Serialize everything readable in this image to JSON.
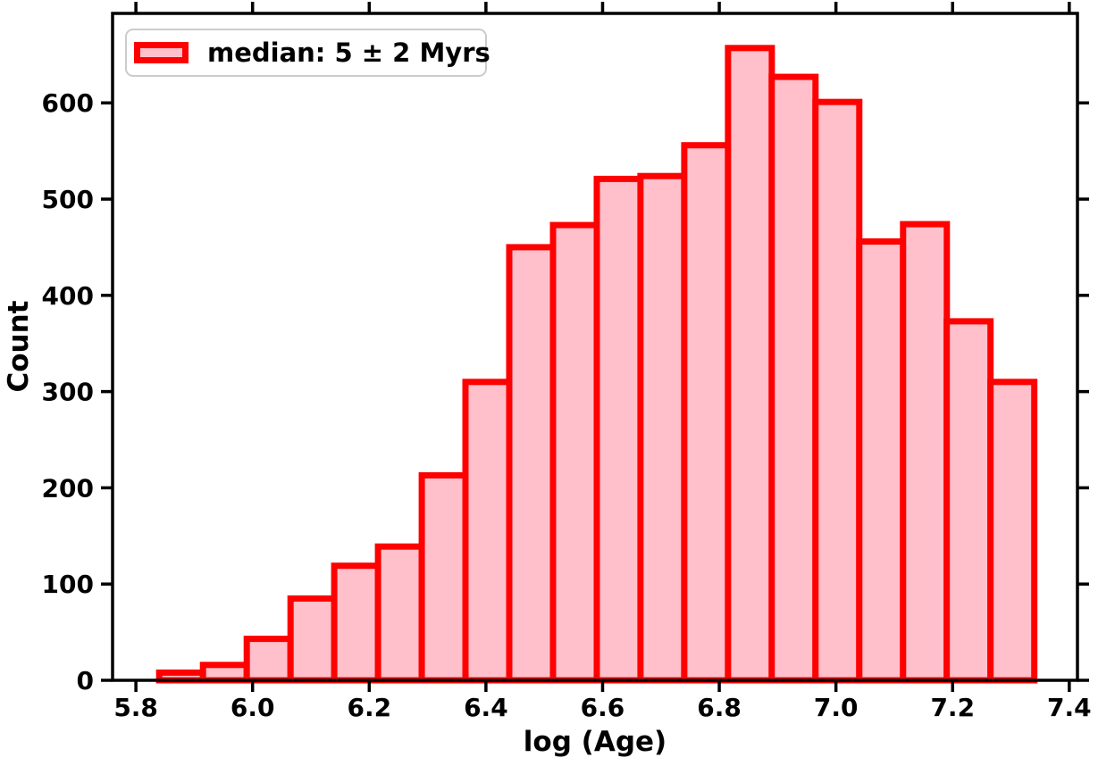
{
  "chart_data": {
    "type": "bar",
    "subtype": "histogram",
    "title": "",
    "xlabel": "log (Age)",
    "ylabel": "Count",
    "legend": {
      "label": "median: 5 ± 2 Myrs",
      "position": "upper left"
    },
    "bin_start": 5.84,
    "bin_width": 0.075,
    "counts": [
      8,
      16,
      43,
      85,
      119,
      139,
      213,
      310,
      450,
      473,
      521,
      524,
      556,
      657,
      627,
      601,
      456,
      474,
      373,
      310
    ],
    "x_ticks": [
      5.8,
      6.0,
      6.2,
      6.4,
      6.6,
      6.8,
      7.0,
      7.2,
      7.4
    ],
    "x_tick_labels": [
      "5.8",
      "6.0",
      "6.2",
      "6.4",
      "6.6",
      "6.8",
      "7.0",
      "7.2",
      "7.4"
    ],
    "y_ticks": [
      0,
      100,
      200,
      300,
      400,
      500,
      600
    ],
    "y_tick_labels": [
      "0",
      "100",
      "200",
      "300",
      "400",
      "500",
      "600"
    ],
    "xlim": [
      5.76,
      7.414
    ],
    "ylim": [
      0,
      693
    ],
    "grid": false,
    "colors": {
      "bar_fill": "#ffc0cb",
      "bar_edge": "#ff0000",
      "axis": "#000000",
      "text": "#000000",
      "legend_frame": "#cccccc"
    },
    "bar_edge_width": 7
  }
}
